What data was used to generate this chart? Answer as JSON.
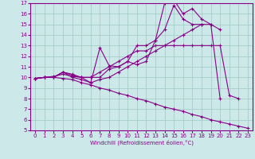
{
  "background_color": "#cde8e8",
  "grid_color": "#a0c8c0",
  "line_color": "#880088",
  "xlim": [
    0,
    23
  ],
  "ylim": [
    5,
    17
  ],
  "xticks": [
    0,
    1,
    2,
    3,
    4,
    5,
    6,
    7,
    8,
    9,
    10,
    11,
    12,
    13,
    14,
    15,
    16,
    17,
    18,
    19,
    20,
    21,
    22,
    23
  ],
  "yticks": [
    5,
    6,
    7,
    8,
    9,
    10,
    11,
    12,
    13,
    14,
    15,
    16,
    17
  ],
  "xlabel": "Windchill (Refroidissement éolien,°C)",
  "lines": [
    [
      9.9,
      10.0,
      10.0,
      10.5,
      10.3,
      10.0,
      9.5,
      12.8,
      11.1,
      11.0,
      11.5,
      13.0,
      13.0,
      13.5,
      17.0,
      17.3,
      16.0,
      16.5,
      15.5,
      15.0,
      14.5,
      null,
      null,
      null
    ],
    [
      9.9,
      10.0,
      10.1,
      10.3,
      10.1,
      10.0,
      10.0,
      10.0,
      10.8,
      11.0,
      11.5,
      11.2,
      11.5,
      13.5,
      14.5,
      16.8,
      15.5,
      15.0,
      15.0,
      15.0,
      8.0,
      null,
      null,
      null
    ],
    [
      9.9,
      10.0,
      10.0,
      10.5,
      10.2,
      10.0,
      10.0,
      10.5,
      11.0,
      11.5,
      12.0,
      12.5,
      12.5,
      13.0,
      13.0,
      13.0,
      13.0,
      13.0,
      13.0,
      13.0,
      13.0,
      8.3,
      8.0,
      null
    ],
    [
      9.9,
      10.0,
      10.0,
      10.5,
      10.0,
      9.8,
      9.5,
      9.8,
      10.0,
      10.5,
      11.0,
      11.5,
      12.0,
      12.5,
      13.0,
      13.5,
      14.0,
      14.5,
      15.0,
      null,
      null,
      null,
      null,
      null
    ],
    [
      9.9,
      10.0,
      10.0,
      9.9,
      9.8,
      9.5,
      9.3,
      9.0,
      8.8,
      8.5,
      8.3,
      8.0,
      7.8,
      7.5,
      7.2,
      7.0,
      6.8,
      6.5,
      6.3,
      6.0,
      5.8,
      5.6,
      5.4,
      5.2
    ]
  ]
}
